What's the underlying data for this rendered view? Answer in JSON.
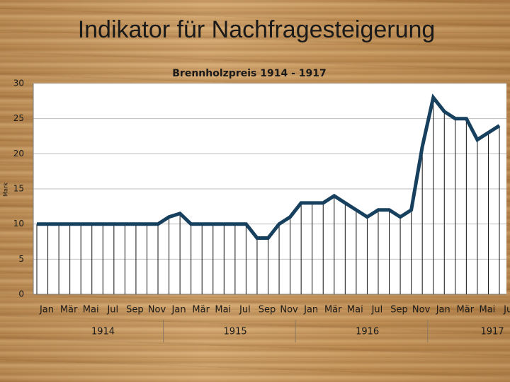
{
  "slide_title": "Indikator für Nachfragesteigerung",
  "chart_data": {
    "type": "line",
    "title": "Brennholzpreis 1914 - 1917",
    "y_label": "Mark",
    "categories": [
      "Jan",
      null,
      "Mär",
      null,
      "Mai",
      null,
      "Jul",
      null,
      "Sep",
      null,
      "Nov",
      null,
      "Jan",
      null,
      "Mär",
      null,
      "Mai",
      null,
      "Jul",
      null,
      "Sep",
      null,
      "Nov",
      null,
      "Jan",
      null,
      "Mär",
      null,
      "Mai",
      null,
      "Jul",
      null,
      "Sep",
      null,
      "Nov",
      null,
      "Jan",
      null,
      "Mär",
      null,
      "Mai",
      null,
      "Jul"
    ],
    "year_labels": [
      "1914",
      "1915",
      "1916",
      "1917"
    ],
    "series": [
      {
        "name": "Brennholzpreis",
        "color": "#17405f",
        "values": [
          10,
          10,
          10,
          10,
          10,
          10,
          10,
          10,
          10,
          10,
          10,
          10,
          11,
          11.5,
          10,
          10,
          10,
          10,
          10,
          10,
          8,
          8,
          10,
          11,
          13,
          13,
          13,
          14,
          13,
          12,
          11,
          12,
          12,
          11,
          12,
          21,
          28,
          26,
          25,
          25,
          22,
          23,
          24
        ]
      }
    ],
    "ylim": [
      0,
      30
    ],
    "yticks": [
      0,
      5,
      10,
      15,
      20,
      25,
      30
    ],
    "grid": true,
    "drop_lines": true
  }
}
